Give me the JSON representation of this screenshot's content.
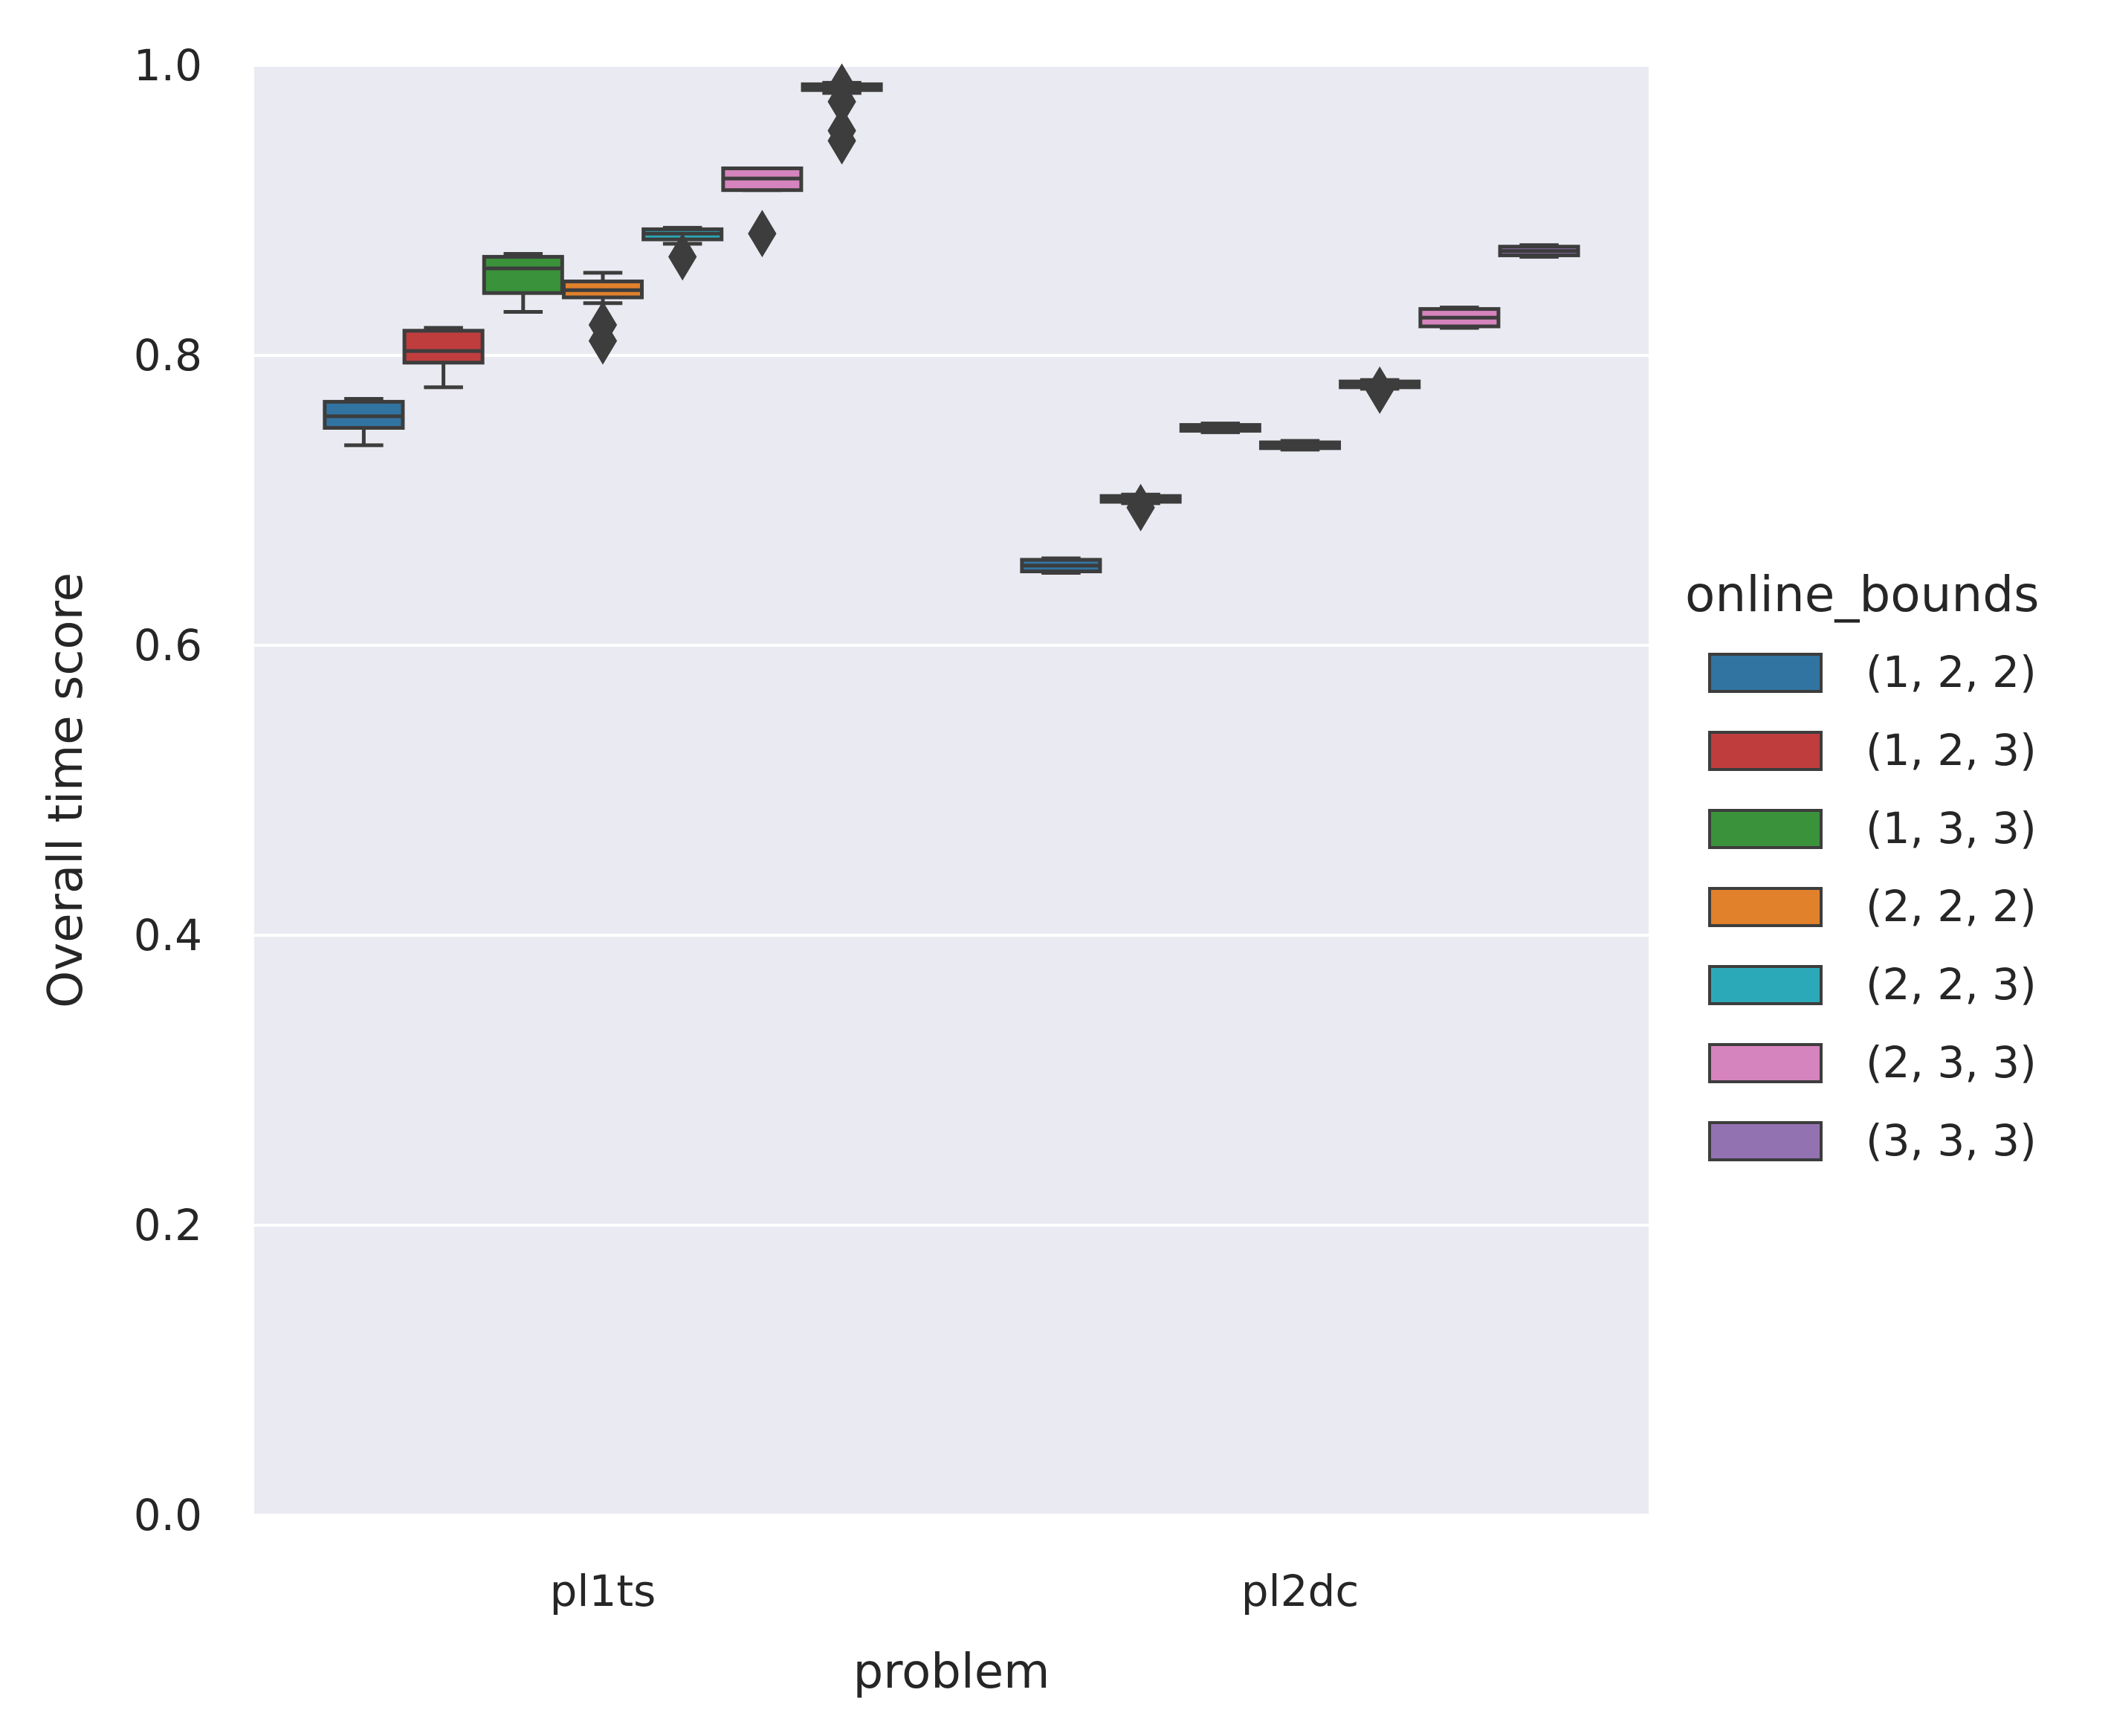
{
  "chart_data": {
    "type": "box",
    "xlabel": "problem",
    "ylabel": "Overall time score",
    "ylim": [
      0.0,
      1.0
    ],
    "yticks": [
      "0.0",
      "0.2",
      "0.4",
      "0.6",
      "0.8",
      "1.0"
    ],
    "categories": [
      "pl1ts",
      "pl2dc"
    ],
    "grid": true,
    "legend": {
      "title": "online_bounds",
      "placement": "right",
      "entries": [
        "(1, 2, 2)",
        "(1, 2, 3)",
        "(1, 3, 3)",
        "(2, 2, 2)",
        "(2, 2, 3)",
        "(2, 3, 3)",
        "(3, 3, 3)"
      ]
    },
    "series": [
      {
        "name": "(1, 2, 2)",
        "color": "#3274a1",
        "boxes": [
          {
            "category": "pl1ts",
            "q1": 0.75,
            "median": 0.758,
            "q3": 0.768,
            "whisker_low": 0.738,
            "whisker_high": 0.77,
            "outliers": []
          },
          {
            "category": "pl2dc",
            "q1": 0.651,
            "median": 0.655,
            "q3": 0.659,
            "whisker_low": 0.65,
            "whisker_high": 0.66,
            "outliers": []
          }
        ]
      },
      {
        "name": "(1, 2, 3)",
        "color": "#c03d3e",
        "boxes": [
          {
            "category": "pl1ts",
            "q1": 0.795,
            "median": 0.803,
            "q3": 0.817,
            "whisker_low": 0.778,
            "whisker_high": 0.819,
            "outliers": []
          },
          {
            "category": "pl2dc",
            "q1": 0.699,
            "median": 0.701,
            "q3": 0.703,
            "whisker_low": 0.698,
            "whisker_high": 0.704,
            "outliers": [
              0.695
            ]
          }
        ]
      },
      {
        "name": "(1, 3, 3)",
        "color": "#3a923a",
        "boxes": [
          {
            "category": "pl1ts",
            "q1": 0.843,
            "median": 0.86,
            "q3": 0.868,
            "whisker_low": 0.83,
            "whisker_high": 0.87,
            "outliers": []
          },
          {
            "category": "pl2dc",
            "q1": 0.748,
            "median": 0.75,
            "q3": 0.752,
            "whisker_low": 0.747,
            "whisker_high": 0.753,
            "outliers": []
          }
        ]
      },
      {
        "name": "(2, 2, 2)",
        "color": "#e1812c",
        "boxes": [
          {
            "category": "pl1ts",
            "q1": 0.84,
            "median": 0.845,
            "q3": 0.851,
            "whisker_low": 0.836,
            "whisker_high": 0.857,
            "outliers": [
              0.821,
              0.81
            ]
          },
          {
            "category": "pl2dc",
            "q1": 0.736,
            "median": 0.738,
            "q3": 0.74,
            "whisker_low": 0.735,
            "whisker_high": 0.741,
            "outliers": []
          }
        ]
      },
      {
        "name": "(2, 2, 3)",
        "color": "#2ca9b8",
        "boxes": [
          {
            "category": "pl1ts",
            "q1": 0.88,
            "median": 0.884,
            "q3": 0.887,
            "whisker_low": 0.877,
            "whisker_high": 0.888,
            "outliers": [
              0.868
            ]
          },
          {
            "category": "pl2dc",
            "q1": 0.778,
            "median": 0.78,
            "q3": 0.782,
            "whisker_low": 0.777,
            "whisker_high": 0.783,
            "outliers": [
              0.776
            ]
          }
        ]
      },
      {
        "name": "(2, 3, 3)",
        "color": "#d684bd",
        "boxes": [
          {
            "category": "pl1ts",
            "q1": 0.914,
            "median": 0.922,
            "q3": 0.929,
            "whisker_low": 0.914,
            "whisker_high": 0.929,
            "outliers": [
              0.884
            ]
          },
          {
            "category": "pl2dc",
            "q1": 0.82,
            "median": 0.826,
            "q3": 0.832,
            "whisker_low": 0.819,
            "whisker_high": 0.833,
            "outliers": []
          }
        ]
      },
      {
        "name": "(3, 3, 3)",
        "color": "#9372b2",
        "boxes": [
          {
            "category": "pl1ts",
            "q1": 0.983,
            "median": 0.985,
            "q3": 0.987,
            "whisker_low": 0.981,
            "whisker_high": 0.988,
            "outliers": [
              0.985,
              0.975,
              0.955,
              0.948
            ]
          },
          {
            "category": "pl2dc",
            "q1": 0.869,
            "median": 0.872,
            "q3": 0.875,
            "whisker_low": 0.868,
            "whisker_high": 0.876,
            "outliers": []
          }
        ]
      }
    ]
  }
}
